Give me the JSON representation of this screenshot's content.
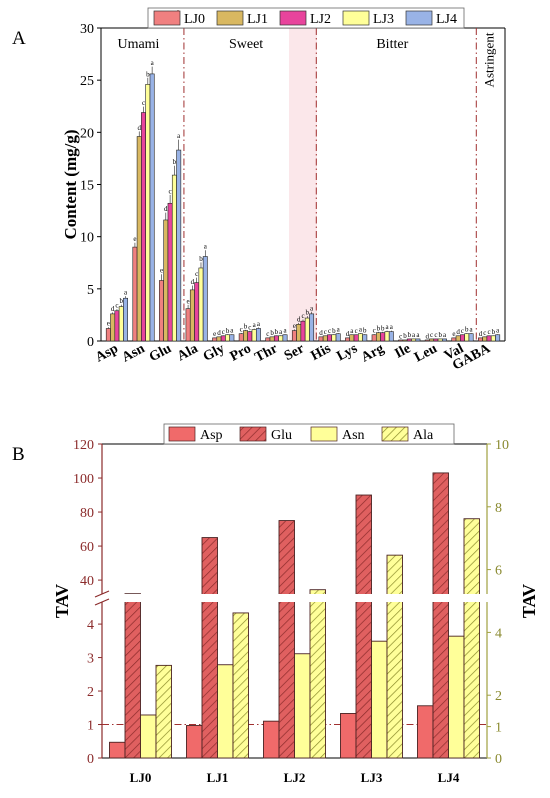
{
  "chart_data": [
    {
      "panel_label": "A",
      "type": "bar",
      "ylabel": "Content (mg/g)",
      "ylim": [
        0,
        30
      ],
      "yticks": [
        0,
        5,
        10,
        15,
        20,
        25,
        30
      ],
      "categories": [
        "Asp",
        "Asn",
        "Glu",
        "Ala",
        "Gly",
        "Pro",
        "Thr",
        "Ser",
        "His",
        "Lys",
        "Arg",
        "Ile",
        "Leu",
        "Val",
        "GABA"
      ],
      "series": [
        {
          "name": "LJ0",
          "color": "#f08080",
          "values": [
            1.2,
            9.0,
            5.8,
            3.1,
            0.3,
            0.7,
            0.3,
            1.0,
            0.4,
            0.3,
            0.6,
            0.1,
            0.1,
            0.3,
            0.3
          ]
        },
        {
          "name": "LJ1",
          "color": "#d9b861",
          "values": [
            2.6,
            19.6,
            11.6,
            4.9,
            0.4,
            1.0,
            0.4,
            1.6,
            0.5,
            0.6,
            0.8,
            0.1,
            0.2,
            0.5,
            0.4
          ]
        },
        {
          "name": "LJ2",
          "color": "#e8449c",
          "values": [
            2.9,
            21.9,
            13.2,
            5.6,
            0.5,
            0.9,
            0.5,
            1.9,
            0.6,
            0.6,
            0.8,
            0.2,
            0.2,
            0.6,
            0.5
          ]
        },
        {
          "name": "LJ3",
          "color": "#ffff99",
          "values": [
            3.3,
            24.6,
            15.9,
            7.0,
            0.6,
            1.1,
            0.5,
            2.2,
            0.6,
            0.7,
            0.9,
            0.2,
            0.2,
            0.7,
            0.5
          ]
        },
        {
          "name": "LJ4",
          "color": "#99b3e6",
          "values": [
            4.1,
            25.6,
            18.3,
            8.1,
            0.6,
            1.2,
            0.6,
            2.6,
            0.7,
            0.6,
            0.9,
            0.2,
            0.2,
            0.7,
            0.6
          ]
        }
      ],
      "errors": [
        0.2,
        0.7,
        1.0,
        0.6,
        0.05,
        0.1,
        0.05,
        0.2,
        0.05,
        0.05,
        0.1,
        0.03,
        0.03,
        0.05,
        0.05
      ],
      "letters": [
        [
          "e",
          "d",
          "c",
          "b",
          "a"
        ],
        [
          "e",
          "d",
          "c",
          "b",
          "a"
        ],
        [
          "e",
          "d",
          "c",
          "b",
          "a"
        ],
        [
          "e",
          "d",
          "c",
          "b",
          "a"
        ],
        [
          "e",
          "d",
          "c",
          "b",
          "a"
        ],
        [
          "c",
          "b",
          "c",
          "a",
          "a"
        ],
        [
          "c",
          "b",
          "b",
          "a",
          "a"
        ],
        [
          "e",
          "d",
          "c",
          "b",
          "a"
        ],
        [
          "d",
          "c",
          "c",
          "b",
          "a"
        ],
        [
          "d",
          "a",
          "c",
          "a",
          "b"
        ],
        [
          "c",
          "b",
          "b",
          "a",
          "a"
        ],
        [
          "c",
          "b",
          "b",
          "a",
          "a"
        ],
        [
          "d",
          "c",
          "c",
          "b",
          "a"
        ],
        [
          "e",
          "d",
          "c",
          "b",
          "a"
        ],
        [
          "d",
          "c",
          "c",
          "b",
          "a"
        ]
      ],
      "groups": [
        {
          "label": "Umami",
          "from": 0,
          "to": 2
        },
        {
          "label": "Sweet",
          "from": 3,
          "to": 7
        },
        {
          "label": "Bitter",
          "from": 8,
          "to": 13
        },
        {
          "label": "Astringent",
          "from": 14,
          "to": 14
        }
      ],
      "legend_placement": "top"
    },
    {
      "panel_label": "B",
      "type": "bar",
      "ylabel": "TAV",
      "y2label": "TAV",
      "categories": [
        "LJ0",
        "LJ1",
        "LJ2",
        "LJ3",
        "LJ4"
      ],
      "left_axis_lower_ticks": [
        0,
        1,
        2,
        3,
        4
      ],
      "left_axis_upper_ticks": [
        40,
        60,
        80,
        100,
        120
      ],
      "left_axis_break": [
        4.6,
        33
      ],
      "right_axis_ticks": [
        0,
        1,
        2,
        4,
        6,
        8,
        10
      ],
      "right_ylim": [
        0,
        10
      ],
      "series": [
        {
          "name": "Asp",
          "axis": "left",
          "color": "#f06a6a",
          "hatched": false,
          "values": [
            0.47,
            0.97,
            1.1,
            1.33,
            1.56
          ]
        },
        {
          "name": "Glu",
          "axis": "left",
          "color": "#e06060",
          "hatched": true,
          "values": [
            32,
            65,
            75,
            90,
            103
          ]
        },
        {
          "name": "Asn",
          "axis": "right",
          "color": "#ffff99",
          "hatched": false,
          "values": [
            1.37,
            2.97,
            3.32,
            3.72,
            3.88
          ]
        },
        {
          "name": "Ala",
          "axis": "right",
          "color": "#ffff99",
          "hatched": true,
          "values": [
            2.95,
            4.62,
            5.36,
            6.46,
            7.62
          ]
        }
      ],
      "threshold": 1,
      "legend_placement": "top"
    }
  ]
}
